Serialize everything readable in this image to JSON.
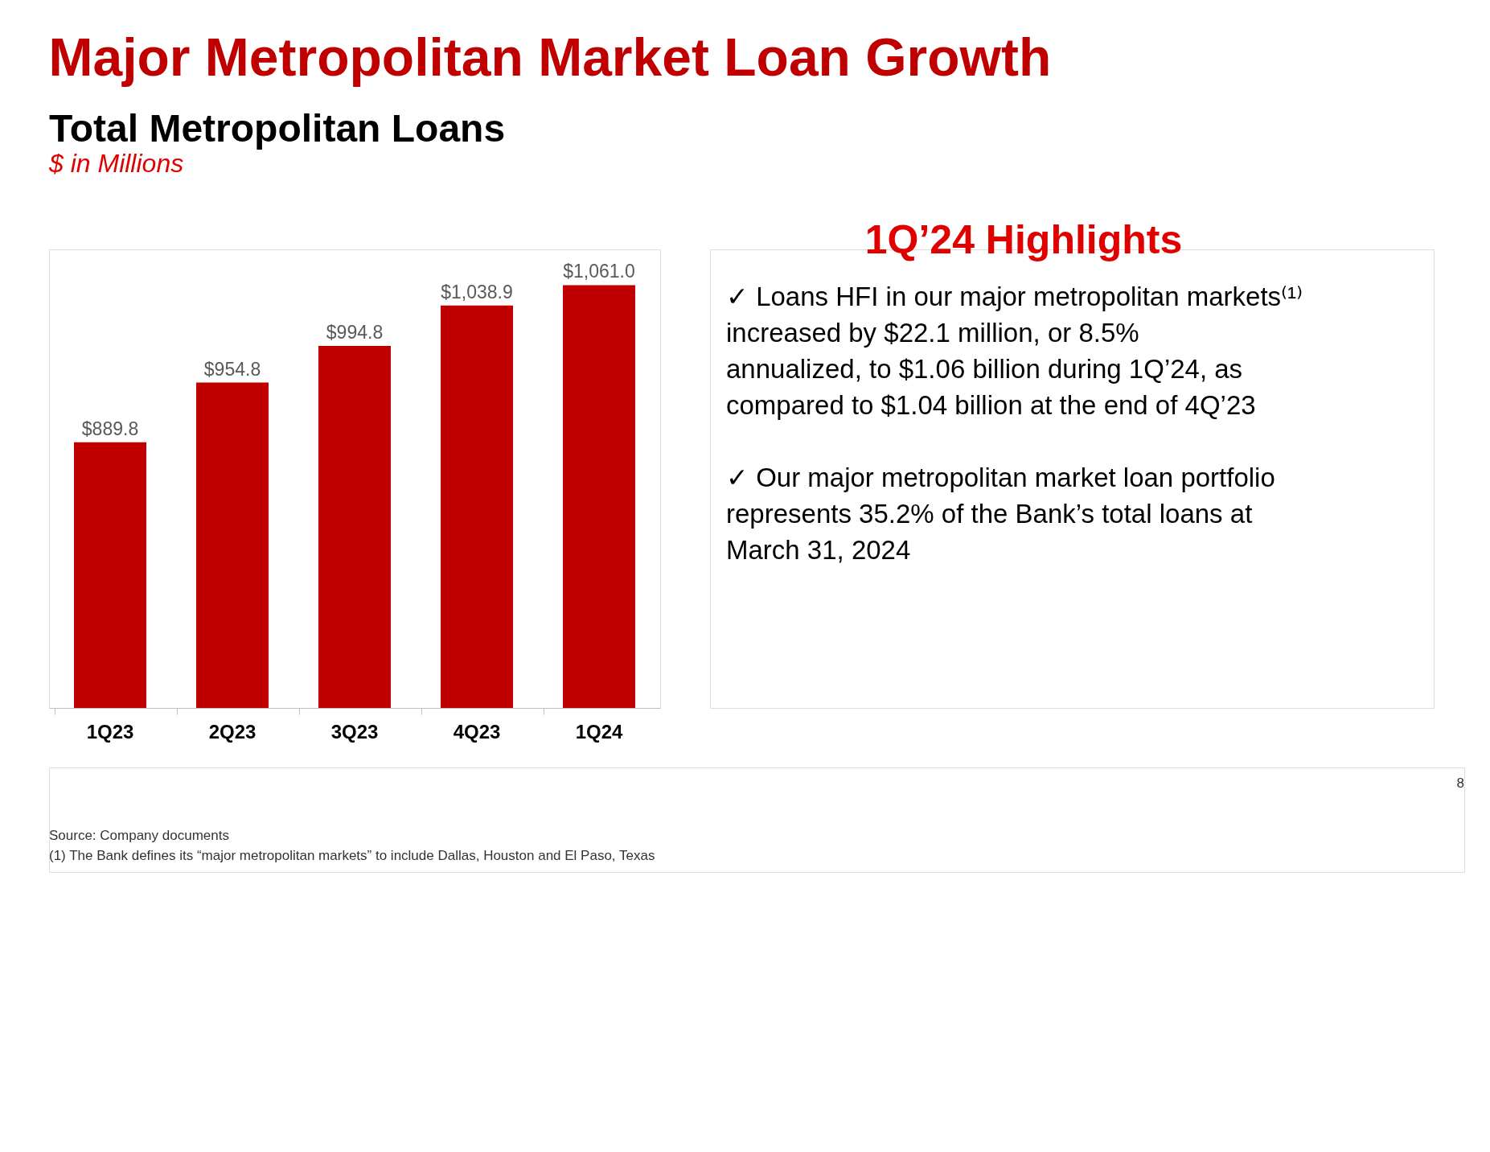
{
  "chart_data": {
    "type": "bar",
    "title": "Major Metropolitan Market Loan Growth",
    "categories": [
      "1Q23",
      "2Q23",
      "3Q23",
      "4Q23",
      "1Q24"
    ],
    "values": [
      889.8,
      954.8,
      994.8,
      1038.9,
      1061.0
    ],
    "value_labels": [
      "$889.8",
      "$954.8",
      "$994.8",
      "$1,038.9",
      "$1,061.0"
    ],
    "color": "#c00000",
    "ylim": [
      600,
      1100
    ],
    "tick_labels": "x",
    "grid": false,
    "annotations": [
      "Total Metropolitan Loans",
      "$ in Millions",
      "1Q’24 Highlights",
      "✓ Loans HFI in our major metropolitan markets⁽¹⁾ increased by $22.1 million, or 8.5% annualized, to $1.06 billion during 1Q’24, as compared to $1.04 billion at the end of 4Q’23",
      "✓ Our major metropolitan market loan portfolio represents 35.2% of the Bank’s total loans at March 31, 2024",
      "8",
      "Source: Company documents",
      "(1) The Bank defines its “major metropolitan markets” to include Dallas, Houston and El Paso, Texas"
    ]
  }
}
